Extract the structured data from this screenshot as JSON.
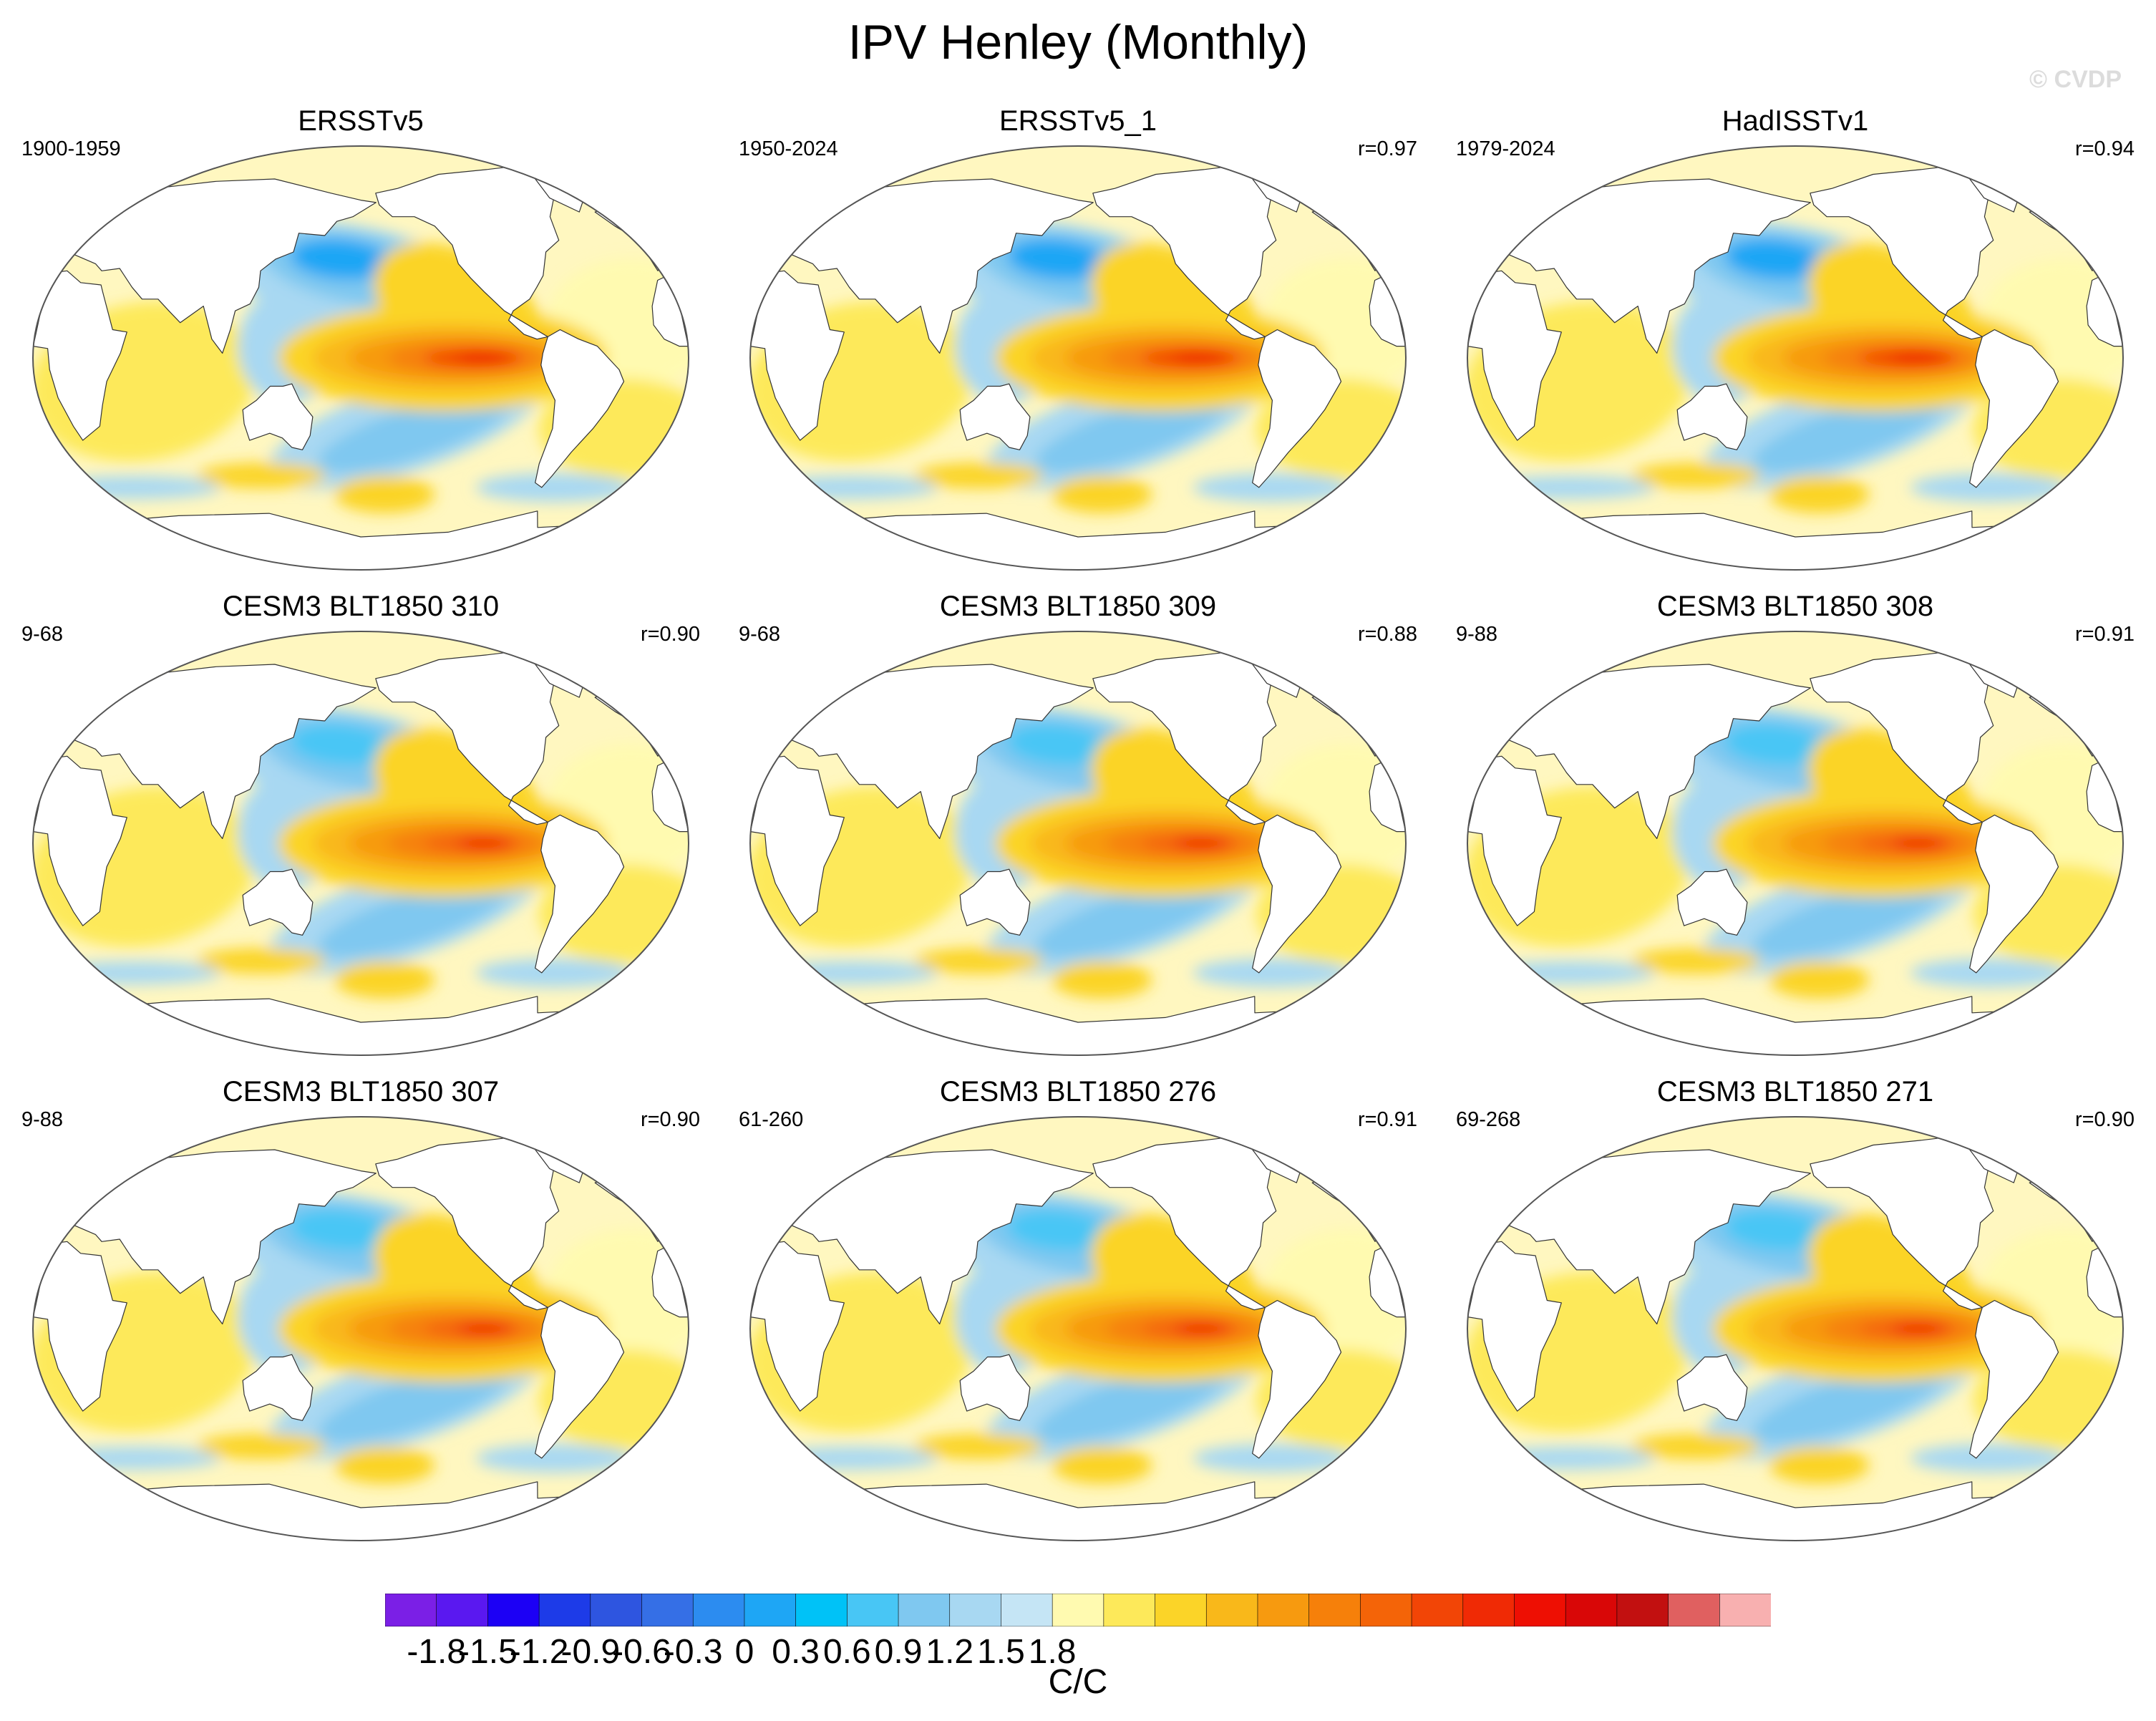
{
  "title": "IPV Henley (Monthly)",
  "credit": "© CVDP",
  "panels": [
    {
      "name": "ERSSTv5",
      "period": "1900-1959",
      "corr": ""
    },
    {
      "name": "ERSSTv5_1",
      "period": "1950-2024",
      "corr": "r=0.97"
    },
    {
      "name": "HadISSTv1",
      "period": "1979-2024",
      "corr": "r=0.94"
    },
    {
      "name": "CESM3 BLT1850 310",
      "period": "9-68",
      "corr": "r=0.90"
    },
    {
      "name": "CESM3 BLT1850 309",
      "period": "9-68",
      "corr": "r=0.88"
    },
    {
      "name": "CESM3 BLT1850 308",
      "period": "9-88",
      "corr": "r=0.91"
    },
    {
      "name": "CESM3 BLT1850 307",
      "period": "9-88",
      "corr": "r=0.90"
    },
    {
      "name": "CESM3 BLT1850 276",
      "period": "61-260",
      "corr": "r=0.91"
    },
    {
      "name": "CESM3 BLT1850 271",
      "period": "69-268",
      "corr": "r=0.90"
    }
  ],
  "colorbar": {
    "units": "C/C",
    "tick_labels": [
      "-1.8",
      "-1.5",
      "-1.2",
      "-0.9",
      "-0.6",
      "-0.3",
      "0",
      "0.3",
      "0.6",
      "0.9",
      "1.2",
      "1.5",
      "1.8"
    ],
    "colors": [
      "#7b1fe6",
      "#5a18f0",
      "#1c00f5",
      "#1d3be8",
      "#2e55e0",
      "#356fe6",
      "#2c8cf0",
      "#1ea6f5",
      "#00c2f7",
      "#48c6f5",
      "#7fc8f0",
      "#a8d8f2",
      "#c5e5f5",
      "#fffab0",
      "#fde95a",
      "#fbd428",
      "#f9b81a",
      "#f79a0f",
      "#f6800a",
      "#f46408",
      "#f24506",
      "#f02a05",
      "#ee0f03",
      "#d90707",
      "#c21010",
      "#e06060",
      "#f8b0b0"
    ]
  }
}
